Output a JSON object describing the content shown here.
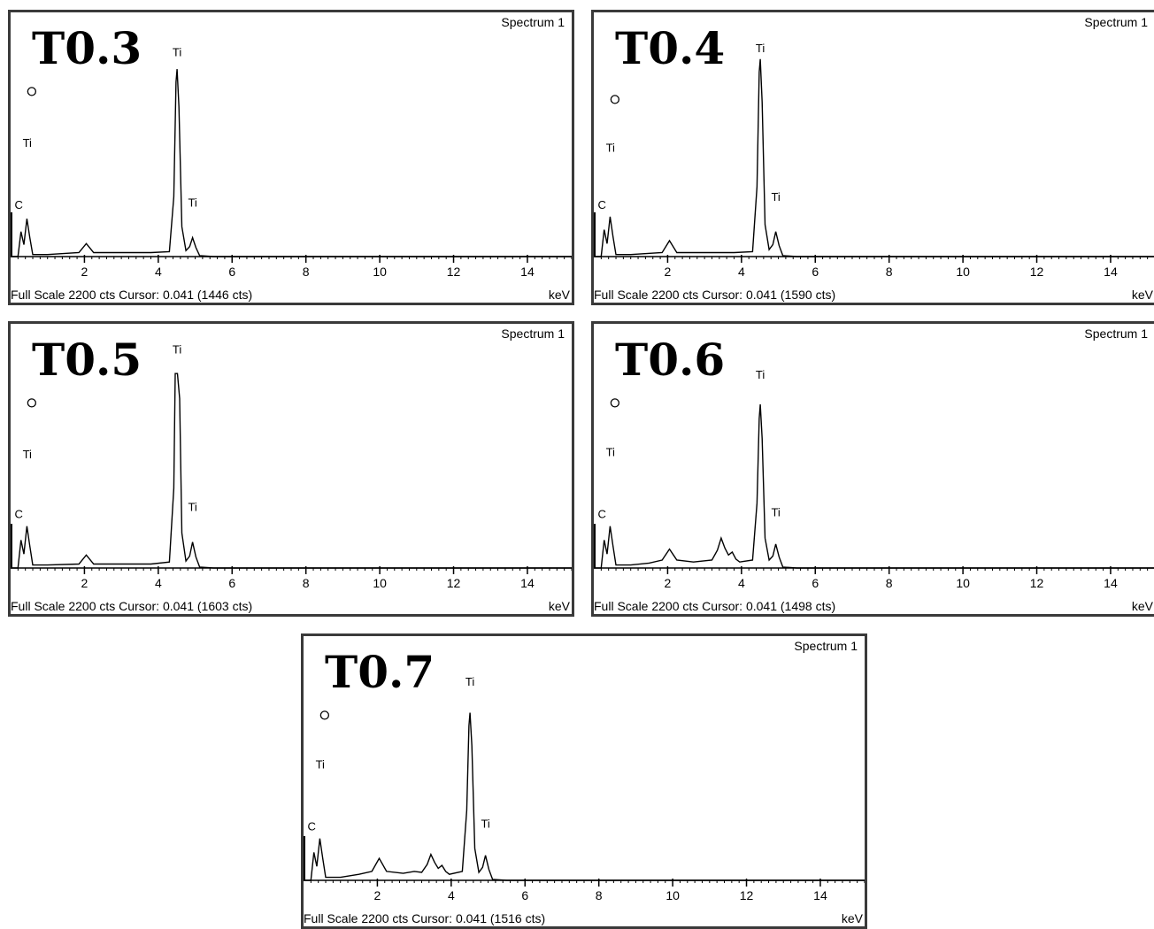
{
  "chart_data": [
    {
      "type": "line",
      "title": "T0.3",
      "spectrum_label": "Spectrum 1",
      "footer": "Full Scale 2200 cts Cursor: 0.041  (1446 cts)",
      "xunit": "keV",
      "xlim": [
        0,
        15.2
      ],
      "ylim": [
        0,
        2200
      ],
      "xticks": [
        2,
        4,
        6,
        8,
        10,
        12,
        14
      ],
      "peak_labels": [
        {
          "text": "O",
          "x": 0.5,
          "y": 1620,
          "marker": "circle"
        },
        {
          "text": "Ti",
          "x": 0.45,
          "y": 1100
        },
        {
          "text": "C",
          "x": 0.22,
          "y": 480
        },
        {
          "text": "Ti",
          "x": 4.51,
          "y": 2010
        },
        {
          "text": "Ti",
          "x": 4.93,
          "y": 500
        }
      ],
      "series": [
        {
          "x": [
            0.0,
            0.2,
            0.28,
            0.36,
            0.44,
            0.52,
            0.6,
            1.0,
            1.85,
            2.05,
            2.25,
            3.8,
            4.3,
            4.42,
            4.48,
            4.51,
            4.56,
            4.64,
            4.75,
            4.85,
            4.93,
            5.02,
            5.12,
            5.5,
            15.2
          ],
          "y": [
            0,
            0,
            250,
            120,
            380,
            190,
            20,
            20,
            40,
            130,
            40,
            40,
            50,
            600,
            1750,
            1880,
            1500,
            300,
            60,
            100,
            190,
            90,
            10,
            0,
            0
          ]
        }
      ]
    },
    {
      "type": "line",
      "title": "T0.4",
      "spectrum_label": "Spectrum 1",
      "footer": "Full Scale 2200 cts Cursor: 0.041  (1590 cts)",
      "xunit": "keV",
      "xlim": [
        0,
        15.2
      ],
      "ylim": [
        0,
        2200
      ],
      "xticks": [
        2,
        4,
        6,
        8,
        10,
        12,
        14
      ],
      "peak_labels": [
        {
          "text": "O",
          "x": 0.5,
          "y": 1540,
          "marker": "circle"
        },
        {
          "text": "Ti",
          "x": 0.45,
          "y": 1050
        },
        {
          "text": "C",
          "x": 0.22,
          "y": 480
        },
        {
          "text": "Ti",
          "x": 4.51,
          "y": 2050
        },
        {
          "text": "Ti",
          "x": 4.93,
          "y": 560
        }
      ],
      "series": [
        {
          "x": [
            0.0,
            0.2,
            0.28,
            0.36,
            0.44,
            0.52,
            0.6,
            1.0,
            1.85,
            2.05,
            2.25,
            3.8,
            4.3,
            4.42,
            4.48,
            4.51,
            4.56,
            4.64,
            4.75,
            4.85,
            4.93,
            5.02,
            5.12,
            5.5,
            15.2
          ],
          "y": [
            0,
            0,
            270,
            130,
            400,
            200,
            20,
            20,
            40,
            160,
            40,
            40,
            50,
            700,
            1850,
            1980,
            1550,
            320,
            70,
            120,
            250,
            110,
            10,
            0,
            0
          ]
        }
      ]
    },
    {
      "type": "line",
      "title": "T0.5",
      "spectrum_label": "Spectrum 1",
      "footer": "Full Scale 2200 cts Cursor: 0.041  (1603 cts)",
      "xunit": "keV",
      "xlim": [
        0,
        15.2
      ],
      "ylim": [
        0,
        2200
      ],
      "xticks": [
        2,
        4,
        6,
        8,
        10,
        12,
        14
      ],
      "peak_labels": [
        {
          "text": "O",
          "x": 0.5,
          "y": 1620,
          "marker": "circle"
        },
        {
          "text": "Ti",
          "x": 0.45,
          "y": 1100
        },
        {
          "text": "C",
          "x": 0.22,
          "y": 500
        },
        {
          "text": "Ti",
          "x": 4.51,
          "y": 2150
        },
        {
          "text": "Ti",
          "x": 4.93,
          "y": 570
        }
      ],
      "series": [
        {
          "x": [
            0.0,
            0.2,
            0.28,
            0.36,
            0.44,
            0.52,
            0.6,
            1.0,
            1.85,
            2.05,
            2.25,
            3.8,
            4.3,
            4.42,
            4.46,
            4.52,
            4.58,
            4.64,
            4.75,
            4.85,
            4.93,
            5.02,
            5.12,
            5.5,
            15.2
          ],
          "y": [
            0,
            0,
            280,
            140,
            420,
            220,
            30,
            30,
            40,
            130,
            40,
            40,
            60,
            800,
            1950,
            1950,
            1700,
            350,
            70,
            120,
            260,
            110,
            10,
            0,
            0
          ]
        }
      ]
    },
    {
      "type": "line",
      "title": "T0.6",
      "spectrum_label": "Spectrum 1",
      "footer": "Full Scale 2200 cts Cursor: 0.041  (1498 cts)",
      "xunit": "keV",
      "xlim": [
        0,
        15.2
      ],
      "ylim": [
        0,
        2200
      ],
      "xticks": [
        2,
        4,
        6,
        8,
        10,
        12,
        14
      ],
      "peak_labels": [
        {
          "text": "O",
          "x": 0.5,
          "y": 1620,
          "marker": "circle"
        },
        {
          "text": "Ti",
          "x": 0.45,
          "y": 1120
        },
        {
          "text": "C",
          "x": 0.22,
          "y": 500
        },
        {
          "text": "Ti",
          "x": 4.51,
          "y": 1900
        },
        {
          "text": "Ti",
          "x": 4.93,
          "y": 520
        }
      ],
      "series": [
        {
          "x": [
            0.0,
            0.2,
            0.28,
            0.36,
            0.44,
            0.52,
            0.6,
            1.0,
            1.5,
            1.85,
            2.05,
            2.25,
            2.7,
            3.2,
            3.35,
            3.45,
            3.55,
            3.65,
            3.75,
            3.85,
            3.95,
            4.3,
            4.42,
            4.48,
            4.51,
            4.56,
            4.64,
            4.75,
            4.85,
            4.93,
            5.02,
            5.12,
            5.5,
            15.2
          ],
          "y": [
            0,
            0,
            280,
            140,
            420,
            220,
            30,
            30,
            50,
            80,
            190,
            80,
            60,
            80,
            180,
            300,
            200,
            130,
            160,
            90,
            60,
            80,
            650,
            1500,
            1640,
            1300,
            300,
            80,
            120,
            240,
            110,
            10,
            0,
            0
          ]
        }
      ]
    },
    {
      "type": "line",
      "title": "T0.7",
      "spectrum_label": "Spectrum 1",
      "footer": "Full Scale 2200 cts Cursor: 0.041  (1516 cts)",
      "xunit": "keV",
      "xlim": [
        0,
        15.2
      ],
      "ylim": [
        0,
        2200
      ],
      "xticks": [
        2,
        4,
        6,
        8,
        10,
        12,
        14
      ],
      "peak_labels": [
        {
          "text": "O",
          "x": 0.5,
          "y": 1620,
          "marker": "circle"
        },
        {
          "text": "Ti",
          "x": 0.45,
          "y": 1120
        },
        {
          "text": "C",
          "x": 0.22,
          "y": 500
        },
        {
          "text": "Ti",
          "x": 4.51,
          "y": 1950
        },
        {
          "text": "Ti",
          "x": 4.93,
          "y": 530
        }
      ],
      "series": [
        {
          "x": [
            0.0,
            0.2,
            0.28,
            0.36,
            0.44,
            0.52,
            0.6,
            1.0,
            1.5,
            1.85,
            2.05,
            2.25,
            2.7,
            3.0,
            3.2,
            3.35,
            3.45,
            3.55,
            3.65,
            3.75,
            3.85,
            3.95,
            4.3,
            4.42,
            4.48,
            4.51,
            4.56,
            4.64,
            4.75,
            4.85,
            4.93,
            5.02,
            5.12,
            5.5,
            15.2
          ],
          "y": [
            0,
            0,
            280,
            140,
            420,
            220,
            30,
            30,
            60,
            90,
            220,
            90,
            70,
            90,
            80,
            160,
            260,
            180,
            120,
            150,
            90,
            60,
            90,
            700,
            1550,
            1680,
            1350,
            320,
            80,
            130,
            250,
            110,
            10,
            0,
            0
          ]
        }
      ]
    }
  ]
}
